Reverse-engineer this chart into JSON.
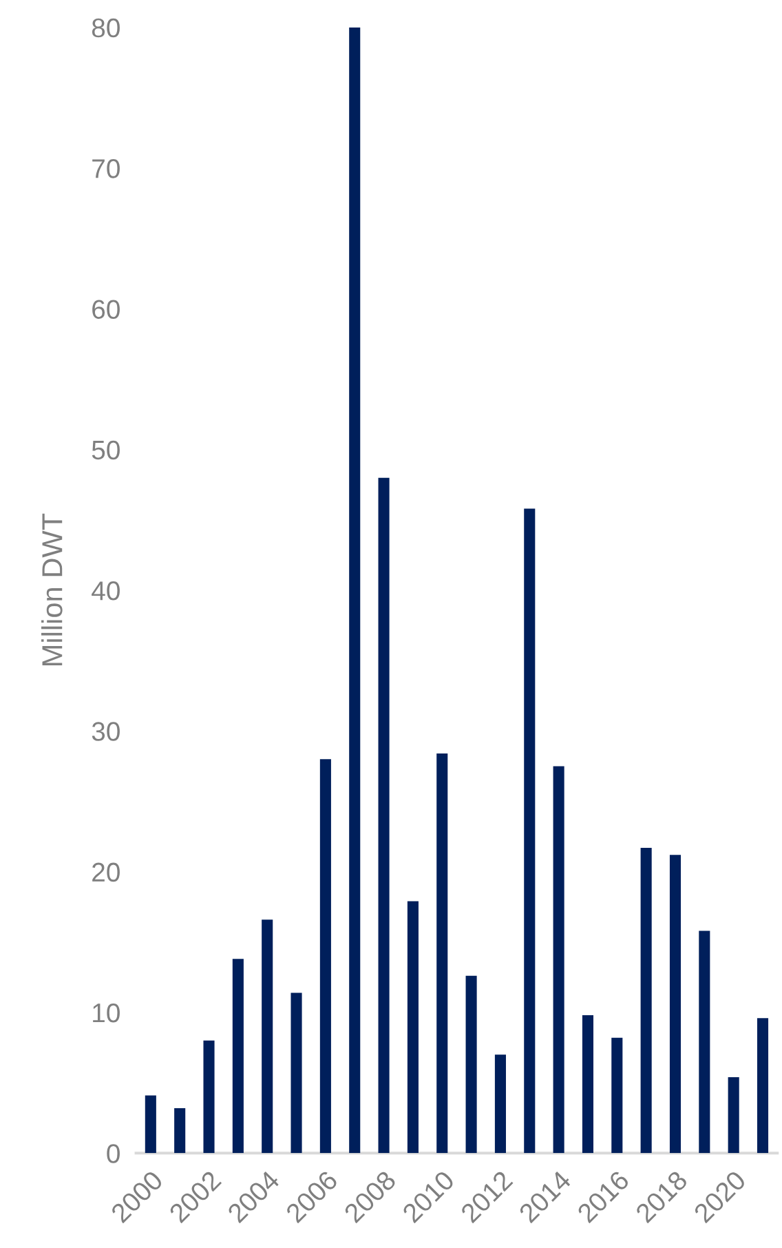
{
  "chart_data": {
    "type": "bar",
    "ylabel": "Million DWT",
    "categories": [
      "2000",
      null,
      "2002",
      null,
      "2004",
      null,
      "2006",
      null,
      "2008",
      null,
      "2010",
      null,
      "2012",
      null,
      "2014",
      null,
      "2016",
      null,
      "2018",
      null,
      "2020",
      null
    ],
    "values": [
      4.1,
      3.2,
      8.0,
      13.8,
      16.6,
      11.4,
      28.0,
      80,
      48.0,
      17.9,
      28.4,
      12.6,
      7.0,
      45.8,
      27.5,
      9.8,
      8.2,
      21.7,
      21.2,
      15.8,
      5.4,
      9.6
    ],
    "color": "#001f5b",
    "ylim": [
      0,
      80
    ],
    "yticks": [
      0,
      10,
      20,
      30,
      40,
      50,
      60,
      70,
      80
    ],
    "grid": false
  }
}
